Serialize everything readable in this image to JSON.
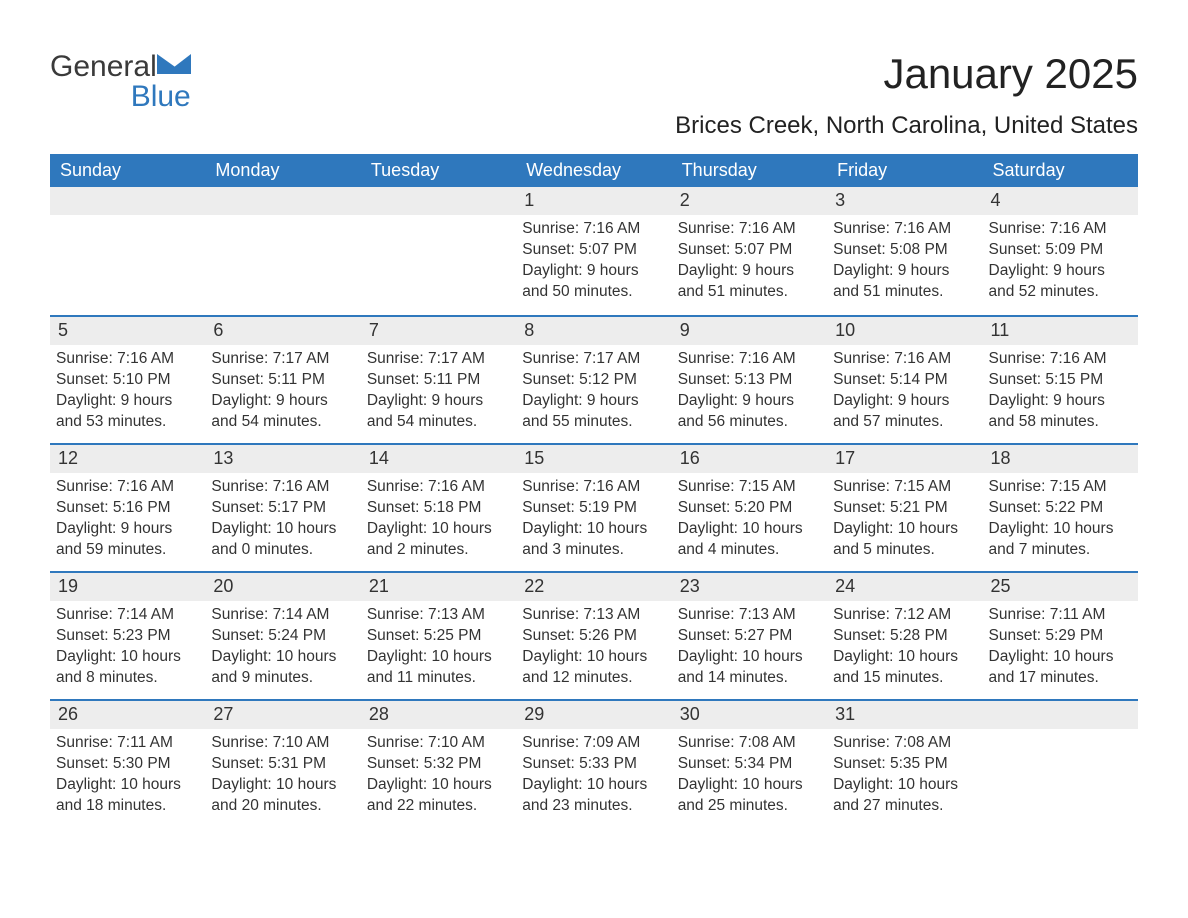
{
  "brand": {
    "word1": "General",
    "word2": "Blue",
    "icon_color": "#2f78bd",
    "text_color": "#3a3a3a"
  },
  "title": "January 2025",
  "location": "Brices Creek, North Carolina, United States",
  "colors": {
    "header_bg": "#2f78bd",
    "header_text": "#ffffff",
    "daynum_bg": "#ededed",
    "week_border": "#2f78bd",
    "body_text": "#333333",
    "page_bg": "#ffffff"
  },
  "typography": {
    "title_fontsize_pt": 32,
    "location_fontsize_pt": 18,
    "header_fontsize_pt": 14,
    "daynum_fontsize_pt": 14,
    "body_fontsize_pt": 12
  },
  "layout": {
    "columns": 7,
    "rows": 5,
    "lead_blank": 3,
    "trail_blank": 1
  },
  "day_labels": [
    "Sunday",
    "Monday",
    "Tuesday",
    "Wednesday",
    "Thursday",
    "Friday",
    "Saturday"
  ],
  "days": [
    {
      "n": "1",
      "sunrise": "Sunrise: 7:16 AM",
      "sunset": "Sunset: 5:07 PM",
      "day1": "Daylight: 9 hours",
      "day2": "and 50 minutes."
    },
    {
      "n": "2",
      "sunrise": "Sunrise: 7:16 AM",
      "sunset": "Sunset: 5:07 PM",
      "day1": "Daylight: 9 hours",
      "day2": "and 51 minutes."
    },
    {
      "n": "3",
      "sunrise": "Sunrise: 7:16 AM",
      "sunset": "Sunset: 5:08 PM",
      "day1": "Daylight: 9 hours",
      "day2": "and 51 minutes."
    },
    {
      "n": "4",
      "sunrise": "Sunrise: 7:16 AM",
      "sunset": "Sunset: 5:09 PM",
      "day1": "Daylight: 9 hours",
      "day2": "and 52 minutes."
    },
    {
      "n": "5",
      "sunrise": "Sunrise: 7:16 AM",
      "sunset": "Sunset: 5:10 PM",
      "day1": "Daylight: 9 hours",
      "day2": "and 53 minutes."
    },
    {
      "n": "6",
      "sunrise": "Sunrise: 7:17 AM",
      "sunset": "Sunset: 5:11 PM",
      "day1": "Daylight: 9 hours",
      "day2": "and 54 minutes."
    },
    {
      "n": "7",
      "sunrise": "Sunrise: 7:17 AM",
      "sunset": "Sunset: 5:11 PM",
      "day1": "Daylight: 9 hours",
      "day2": "and 54 minutes."
    },
    {
      "n": "8",
      "sunrise": "Sunrise: 7:17 AM",
      "sunset": "Sunset: 5:12 PM",
      "day1": "Daylight: 9 hours",
      "day2": "and 55 minutes."
    },
    {
      "n": "9",
      "sunrise": "Sunrise: 7:16 AM",
      "sunset": "Sunset: 5:13 PM",
      "day1": "Daylight: 9 hours",
      "day2": "and 56 minutes."
    },
    {
      "n": "10",
      "sunrise": "Sunrise: 7:16 AM",
      "sunset": "Sunset: 5:14 PM",
      "day1": "Daylight: 9 hours",
      "day2": "and 57 minutes."
    },
    {
      "n": "11",
      "sunrise": "Sunrise: 7:16 AM",
      "sunset": "Sunset: 5:15 PM",
      "day1": "Daylight: 9 hours",
      "day2": "and 58 minutes."
    },
    {
      "n": "12",
      "sunrise": "Sunrise: 7:16 AM",
      "sunset": "Sunset: 5:16 PM",
      "day1": "Daylight: 9 hours",
      "day2": "and 59 minutes."
    },
    {
      "n": "13",
      "sunrise": "Sunrise: 7:16 AM",
      "sunset": "Sunset: 5:17 PM",
      "day1": "Daylight: 10 hours",
      "day2": "and 0 minutes."
    },
    {
      "n": "14",
      "sunrise": "Sunrise: 7:16 AM",
      "sunset": "Sunset: 5:18 PM",
      "day1": "Daylight: 10 hours",
      "day2": "and 2 minutes."
    },
    {
      "n": "15",
      "sunrise": "Sunrise: 7:16 AM",
      "sunset": "Sunset: 5:19 PM",
      "day1": "Daylight: 10 hours",
      "day2": "and 3 minutes."
    },
    {
      "n": "16",
      "sunrise": "Sunrise: 7:15 AM",
      "sunset": "Sunset: 5:20 PM",
      "day1": "Daylight: 10 hours",
      "day2": "and 4 minutes."
    },
    {
      "n": "17",
      "sunrise": "Sunrise: 7:15 AM",
      "sunset": "Sunset: 5:21 PM",
      "day1": "Daylight: 10 hours",
      "day2": "and 5 minutes."
    },
    {
      "n": "18",
      "sunrise": "Sunrise: 7:15 AM",
      "sunset": "Sunset: 5:22 PM",
      "day1": "Daylight: 10 hours",
      "day2": "and 7 minutes."
    },
    {
      "n": "19",
      "sunrise": "Sunrise: 7:14 AM",
      "sunset": "Sunset: 5:23 PM",
      "day1": "Daylight: 10 hours",
      "day2": "and 8 minutes."
    },
    {
      "n": "20",
      "sunrise": "Sunrise: 7:14 AM",
      "sunset": "Sunset: 5:24 PM",
      "day1": "Daylight: 10 hours",
      "day2": "and 9 minutes."
    },
    {
      "n": "21",
      "sunrise": "Sunrise: 7:13 AM",
      "sunset": "Sunset: 5:25 PM",
      "day1": "Daylight: 10 hours",
      "day2": "and 11 minutes."
    },
    {
      "n": "22",
      "sunrise": "Sunrise: 7:13 AM",
      "sunset": "Sunset: 5:26 PM",
      "day1": "Daylight: 10 hours",
      "day2": "and 12 minutes."
    },
    {
      "n": "23",
      "sunrise": "Sunrise: 7:13 AM",
      "sunset": "Sunset: 5:27 PM",
      "day1": "Daylight: 10 hours",
      "day2": "and 14 minutes."
    },
    {
      "n": "24",
      "sunrise": "Sunrise: 7:12 AM",
      "sunset": "Sunset: 5:28 PM",
      "day1": "Daylight: 10 hours",
      "day2": "and 15 minutes."
    },
    {
      "n": "25",
      "sunrise": "Sunrise: 7:11 AM",
      "sunset": "Sunset: 5:29 PM",
      "day1": "Daylight: 10 hours",
      "day2": "and 17 minutes."
    },
    {
      "n": "26",
      "sunrise": "Sunrise: 7:11 AM",
      "sunset": "Sunset: 5:30 PM",
      "day1": "Daylight: 10 hours",
      "day2": "and 18 minutes."
    },
    {
      "n": "27",
      "sunrise": "Sunrise: 7:10 AM",
      "sunset": "Sunset: 5:31 PM",
      "day1": "Daylight: 10 hours",
      "day2": "and 20 minutes."
    },
    {
      "n": "28",
      "sunrise": "Sunrise: 7:10 AM",
      "sunset": "Sunset: 5:32 PM",
      "day1": "Daylight: 10 hours",
      "day2": "and 22 minutes."
    },
    {
      "n": "29",
      "sunrise": "Sunrise: 7:09 AM",
      "sunset": "Sunset: 5:33 PM",
      "day1": "Daylight: 10 hours",
      "day2": "and 23 minutes."
    },
    {
      "n": "30",
      "sunrise": "Sunrise: 7:08 AM",
      "sunset": "Sunset: 5:34 PM",
      "day1": "Daylight: 10 hours",
      "day2": "and 25 minutes."
    },
    {
      "n": "31",
      "sunrise": "Sunrise: 7:08 AM",
      "sunset": "Sunset: 5:35 PM",
      "day1": "Daylight: 10 hours",
      "day2": "and 27 minutes."
    }
  ]
}
